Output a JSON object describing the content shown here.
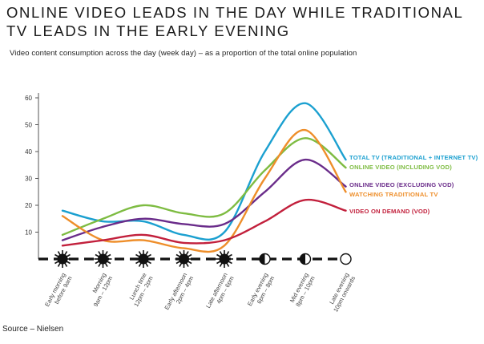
{
  "chart_data": {
    "type": "line",
    "title": "ONLINE VIDEO LEADS IN THE DAY WHILE TRADITIONAL TV LEADS IN THE EARLY EVENING",
    "subtitle": "Video content consumption across the day (week day) – as a proportion of the total online population",
    "source": "Source – Nielsen",
    "ylim": [
      0,
      60
    ],
    "yticks": [
      10,
      20,
      30,
      40,
      50,
      60
    ],
    "categories": [
      [
        "Early morning",
        "before 9am"
      ],
      [
        "Morning",
        "9am – 12pm"
      ],
      [
        "Lunch time",
        "12pm – 2pm"
      ],
      [
        "Early afternoon",
        "2pm – 4pm"
      ],
      [
        "Late afternoon",
        "4pm – 6pm"
      ],
      [
        "Early evening",
        "6pm – 8pm"
      ],
      [
        "Mid evening",
        "8pm – 10pm"
      ],
      [
        "Late evening",
        "10pm onwards"
      ]
    ],
    "time_icons": [
      "sun",
      "sun",
      "sun",
      "sun",
      "sun",
      "half-moon",
      "half-moon",
      "empty-moon"
    ],
    "grid": false,
    "legend": "right",
    "series": [
      {
        "name": "TOTAL TV (TRADITIONAL + INTERNET TV)",
        "color": "#1ba0d0",
        "values": [
          18,
          14,
          14,
          9,
          10,
          40,
          58,
          37
        ]
      },
      {
        "name": "ONLINE VIDEO (INCLUDING VOD)",
        "color": "#7ebc42",
        "values": [
          9,
          15,
          20,
          17,
          17,
          33,
          45,
          34
        ]
      },
      {
        "name": "ONLINE VIDEO (EXCLUDING VOD)",
        "color": "#6a2c8a",
        "values": [
          7,
          12,
          15,
          13,
          13,
          25,
          37,
          27
        ]
      },
      {
        "name": "WATCHING TRADITIONAL TV",
        "color": "#ee8e2a",
        "values": [
          16,
          7,
          7,
          4,
          5,
          30,
          48,
          25
        ]
      },
      {
        "name": "VIDEO ON DEMAND (VOD)",
        "color": "#c2203c",
        "values": [
          5,
          7,
          9,
          6,
          7,
          14,
          22,
          18
        ]
      }
    ]
  }
}
